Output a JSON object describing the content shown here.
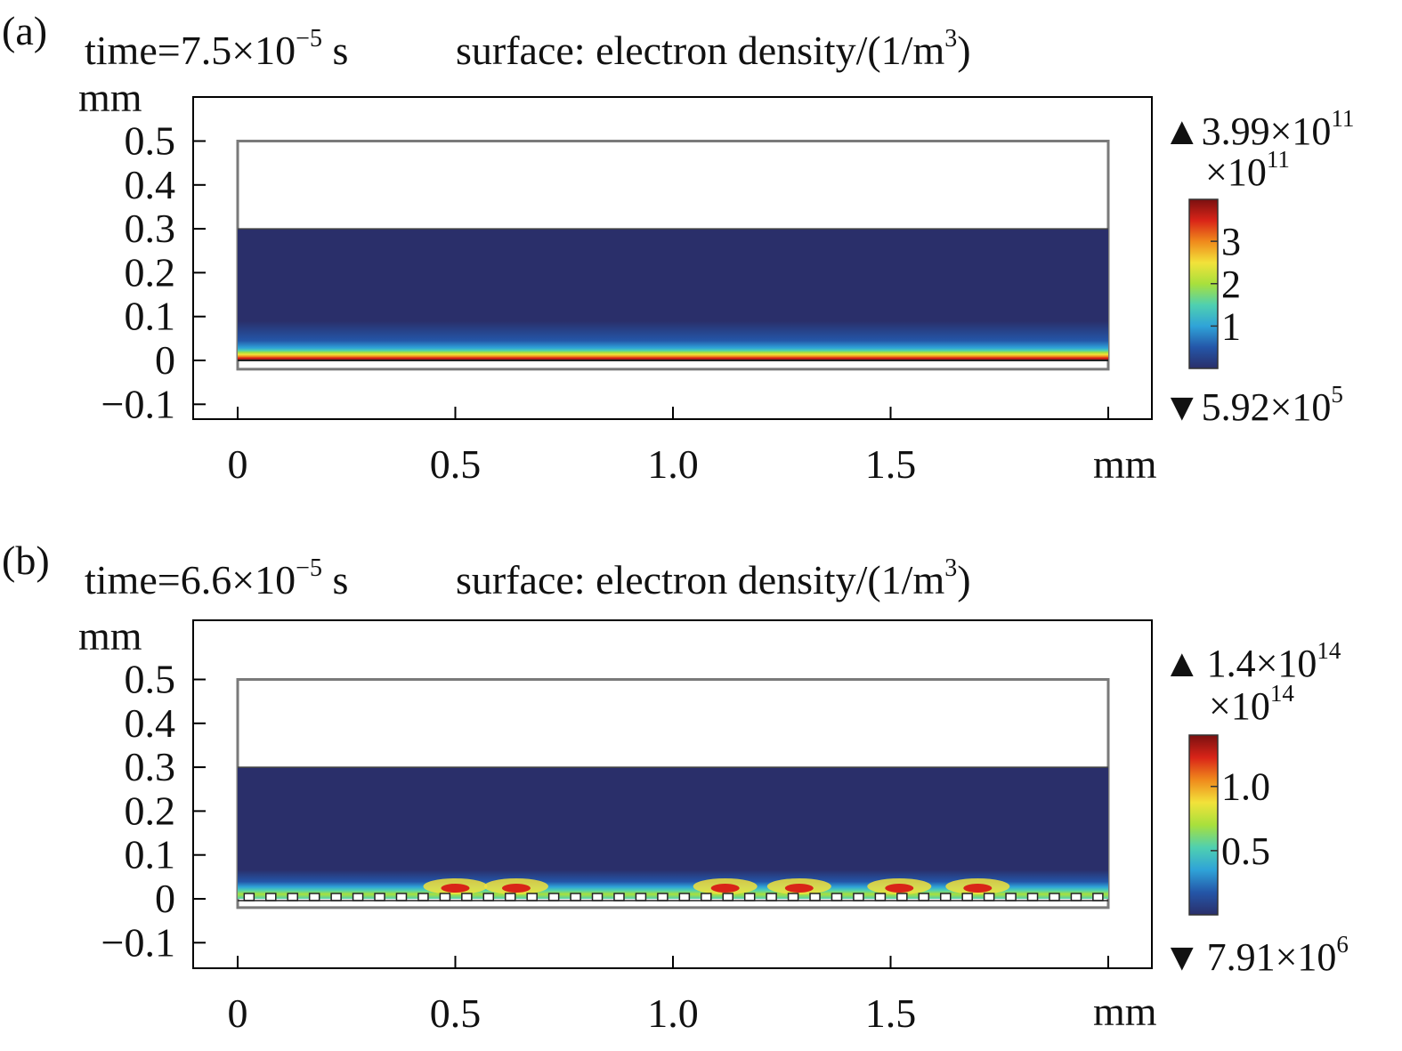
{
  "chart_data": [
    {
      "type": "heatmap",
      "panel_label": "(a)",
      "title": {
        "time_prefix": "time=7.5×10",
        "time_exp": "−5",
        "time_unit": " s",
        "surface_prefix": "surface: electron density/(1/m",
        "surface_exp": "3",
        "surface_suffix": ")"
      },
      "yunit": "mm",
      "xunit": "mm",
      "xticks": [
        "0",
        "0.5",
        "1.0",
        "1.5"
      ],
      "xtick_values": [
        0,
        0.5,
        1.0,
        1.5
      ],
      "yticks": [
        "0.5",
        "0.4",
        "0.3",
        "0.2",
        "0.1",
        "0",
        "−0.1"
      ],
      "ytick_values": [
        0.5,
        0.4,
        0.3,
        0.2,
        0.1,
        0,
        -0.1
      ],
      "xlim": [
        -0.1,
        2.1
      ],
      "ylim": [
        -0.13,
        0.6
      ],
      "domain_x": [
        0,
        2.0
      ],
      "domain_y": [
        -0.02,
        0.5
      ],
      "plasma_top_y": 0.3,
      "surface": "flat",
      "hotspots_x": [],
      "colorbar": {
        "max_mantissa": "3.99×10",
        "max_exp": "11",
        "scale_prefix": "×10",
        "scale_exp": "11",
        "ticks": [
          "3",
          "2",
          "1"
        ],
        "tick_values": [
          3,
          2,
          1
        ],
        "vmin": 0,
        "vmax": 3.99,
        "min_mantissa": "5.92×10",
        "min_exp": "5"
      },
      "colormap": [
        "#2a2f6a",
        "#2456a8",
        "#2fa3d8",
        "#4fd0b0",
        "#a8e03c",
        "#f2e23a",
        "#f08a1c",
        "#d92418",
        "#7a1010"
      ]
    },
    {
      "type": "heatmap",
      "panel_label": "(b)",
      "title": {
        "time_prefix": "time=6.6×10",
        "time_exp": "−5",
        "time_unit": " s",
        "surface_prefix": "surface: electron density/(1/m",
        "surface_exp": "3",
        "surface_suffix": ")"
      },
      "yunit": "mm",
      "xunit": "mm",
      "xticks": [
        "0",
        "0.5",
        "1.0",
        "1.5"
      ],
      "xtick_values": [
        0,
        0.5,
        1.0,
        1.5
      ],
      "yticks": [
        "0.5",
        "0.4",
        "0.3",
        "0.2",
        "0.1",
        "0",
        "−0.1"
      ],
      "ytick_values": [
        0.5,
        0.4,
        0.3,
        0.2,
        0.1,
        0,
        -0.1
      ],
      "xlim": [
        -0.1,
        2.1
      ],
      "ylim": [
        -0.13,
        0.6
      ],
      "domain_x": [
        0,
        2.0
      ],
      "domain_y": [
        -0.02,
        0.5
      ],
      "plasma_top_y": 0.3,
      "surface": "grooved",
      "hotspots_x": [
        0.5,
        0.64,
        1.12,
        1.29,
        1.52,
        1.7
      ],
      "colorbar": {
        "max_mantissa": "1.4×10",
        "max_exp": "14",
        "scale_prefix": "×10",
        "scale_exp": "14",
        "ticks": [
          "1.0",
          "0.5"
        ],
        "tick_values": [
          1.0,
          0.5
        ],
        "vmin": 0,
        "vmax": 1.4,
        "min_mantissa": "7.91×10",
        "min_exp": "6"
      },
      "colormap": [
        "#2a2f6a",
        "#2456a8",
        "#2fa3d8",
        "#4fd0b0",
        "#a8e03c",
        "#f2e23a",
        "#f08a1c",
        "#d92418",
        "#7a1010"
      ]
    }
  ]
}
